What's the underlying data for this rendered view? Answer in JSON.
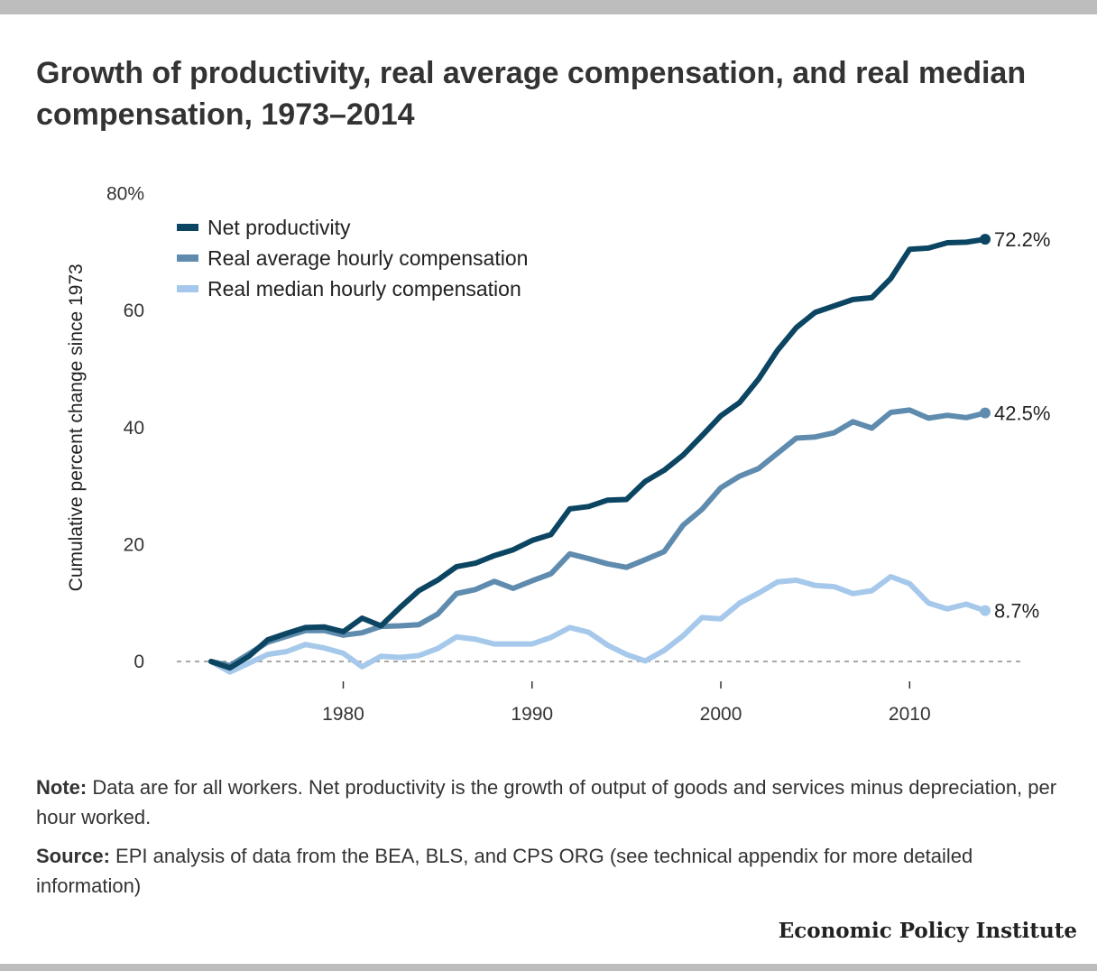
{
  "chart_data": {
    "type": "line",
    "title": "Growth of productivity, real average compensation, and real median compensation, 1973–2014",
    "ylabel": "Cumulative percent change since 1973",
    "xlabel": "",
    "xlim": [
      1972,
      2016
    ],
    "ylim": [
      -5,
      80
    ],
    "x_ticks": [
      1980,
      1990,
      2000,
      2010
    ],
    "y_ticks": [
      0,
      20,
      40,
      60,
      80
    ],
    "y_tick_labels": [
      "0",
      "20",
      "40",
      "60",
      "80%"
    ],
    "grid": false,
    "zero_line": "dashed",
    "legend_position": "top-left",
    "x": [
      1973,
      1974,
      1975,
      1976,
      1977,
      1978,
      1979,
      1980,
      1981,
      1982,
      1983,
      1984,
      1985,
      1986,
      1987,
      1988,
      1989,
      1990,
      1991,
      1992,
      1993,
      1994,
      1995,
      1996,
      1997,
      1998,
      1999,
      2000,
      2001,
      2002,
      2003,
      2004,
      2005,
      2006,
      2007,
      2008,
      2009,
      2010,
      2011,
      2012,
      2013,
      2014
    ],
    "series": [
      {
        "name": "Net productivity",
        "color": "#0b4562",
        "end_label": "72.2%",
        "values": [
          0,
          -1.1,
          0.9,
          3.7,
          4.8,
          5.8,
          5.9,
          5.1,
          7.4,
          6.1,
          9.2,
          12.1,
          13.9,
          16.2,
          16.8,
          18.1,
          19.1,
          20.7,
          21.7,
          26.1,
          26.5,
          27.6,
          27.7,
          30.8,
          32.7,
          35.3,
          38.6,
          42.0,
          44.3,
          48.3,
          53.2,
          57.1,
          59.7,
          60.8,
          61.9,
          62.2,
          65.5,
          70.5,
          70.7,
          71.6,
          71.7,
          72.2
        ]
      },
      {
        "name": "Real average hourly compensation",
        "color": "#5f8cae",
        "end_label": "42.5%",
        "values": [
          0,
          -0.7,
          1.3,
          3.3,
          4.3,
          5.3,
          5.3,
          4.5,
          4.9,
          6.0,
          6.1,
          6.3,
          8.1,
          11.6,
          12.3,
          13.7,
          12.5,
          13.8,
          15.0,
          18.4,
          17.6,
          16.7,
          16.1,
          17.4,
          18.8,
          23.3,
          26.0,
          29.7,
          31.7,
          33.0,
          35.6,
          38.2,
          38.4,
          39.1,
          41.0,
          39.9,
          42.6,
          43.0,
          41.6,
          42.1,
          41.7,
          42.5
        ]
      },
      {
        "name": "Real median hourly compensation",
        "color": "#a6c9eb",
        "end_label": "8.7%",
        "values": [
          0,
          -1.8,
          -0.3,
          1.2,
          1.7,
          2.9,
          2.3,
          1.4,
          -0.9,
          0.9,
          0.7,
          1.0,
          2.2,
          4.2,
          3.8,
          3.0,
          3.0,
          3.0,
          4.1,
          5.8,
          5.0,
          2.8,
          1.2,
          0.1,
          1.9,
          4.4,
          7.5,
          7.3,
          10.0,
          11.7,
          13.6,
          13.9,
          13.0,
          12.8,
          11.6,
          12.1,
          14.5,
          13.3,
          10.0,
          9.0,
          9.8,
          8.7
        ]
      }
    ]
  },
  "notes": {
    "note_label": "Note:",
    "note_text": " Data are for all workers. Net productivity is the growth of output of goods and services minus depreciation, per hour worked.",
    "source_label": "Source:",
    "source_text": " EPI analysis of data from the BEA, BLS, and CPS ORG (see technical appendix for more detailed information)"
  },
  "brand": "Economic Policy Institute"
}
